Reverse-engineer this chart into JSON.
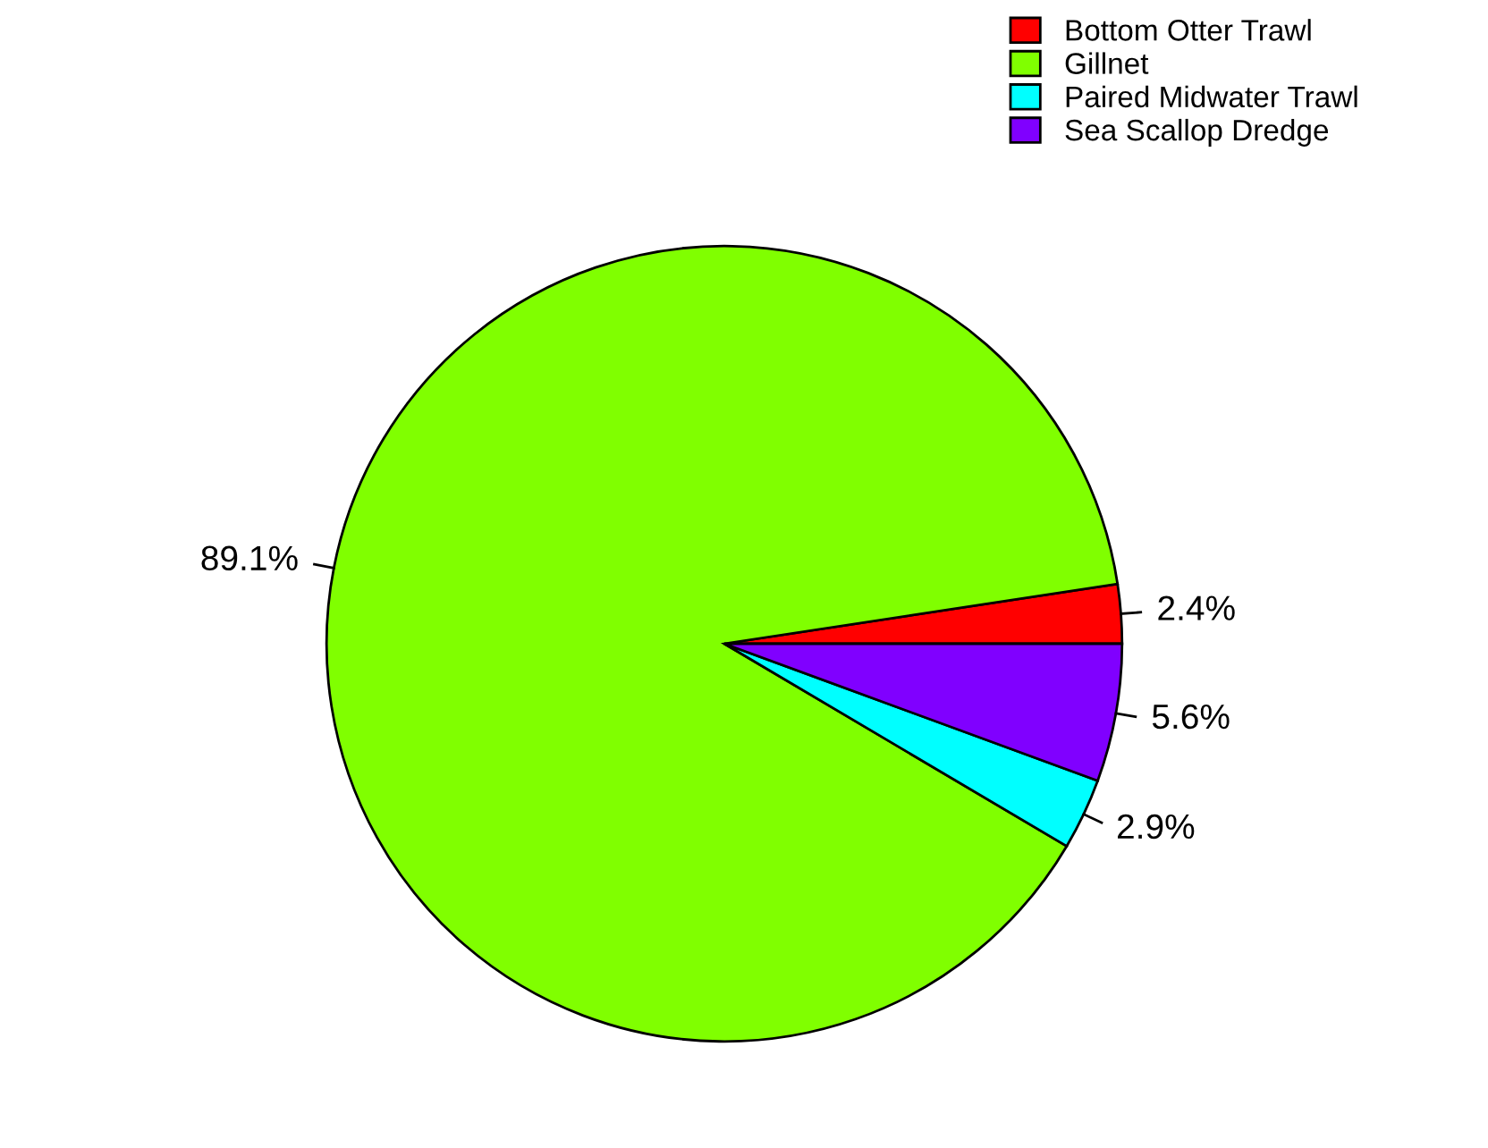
{
  "chart_data": {
    "type": "pie",
    "categories": [
      "Bottom Otter Trawl",
      "Gillnet",
      "Paired Midwater Trawl",
      "Sea Scallop Dredge"
    ],
    "values": [
      2.4,
      89.1,
      2.9,
      5.6
    ],
    "colors": [
      "#ff0000",
      "#80ff00",
      "#00ffff",
      "#8000ff"
    ],
    "value_labels": [
      "2.4%",
      "89.1%",
      "2.9%",
      "5.6%"
    ],
    "legend": "top right"
  }
}
